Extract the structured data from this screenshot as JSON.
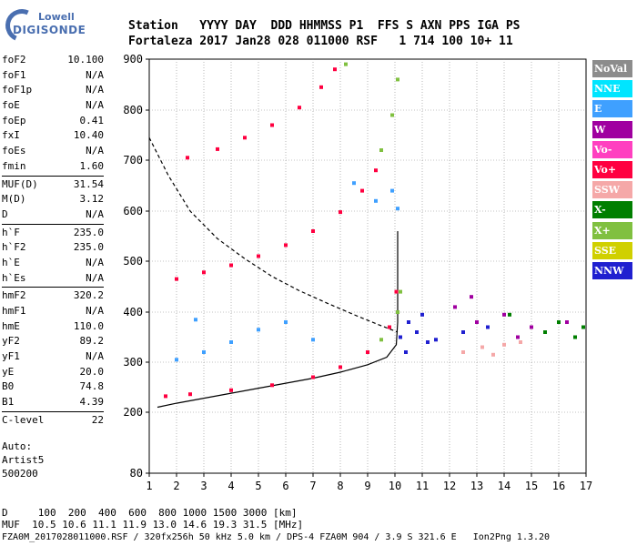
{
  "logo": {
    "line1": "Lowell",
    "line2": "DIGISONDE"
  },
  "header": {
    "row1": "Station   YYYY DAY  DDD HHMMSS P1  FFS S AXN PPS IGA PS",
    "row2": "Fortaleza 2017 Jan28 028 011000 RSF   1 714 100 10+ 11"
  },
  "sidebar": {
    "groups": [
      [
        [
          "foF2",
          "10.100"
        ],
        [
          "foF1",
          "N/A"
        ],
        [
          "foF1p",
          "N/A"
        ],
        [
          "foE",
          "N/A"
        ],
        [
          "foEp",
          "0.41"
        ],
        [
          "fxI",
          "10.40"
        ],
        [
          "foEs",
          "N/A"
        ],
        [
          "fmin",
          "1.60"
        ]
      ],
      [
        [
          "MUF(D)",
          "31.54"
        ],
        [
          "M(D)",
          "3.12"
        ],
        [
          "D",
          "N/A"
        ]
      ],
      [
        [
          "h`F",
          "235.0"
        ],
        [
          "h`F2",
          "235.0"
        ],
        [
          "h`E",
          "N/A"
        ],
        [
          "h`Es",
          "N/A"
        ]
      ],
      [
        [
          "hmF2",
          "320.2"
        ],
        [
          "hmF1",
          "N/A"
        ],
        [
          "hmE",
          "110.0"
        ],
        [
          "yF2",
          "89.2"
        ],
        [
          "yF1",
          "N/A"
        ],
        [
          "yE",
          "20.0"
        ],
        [
          "B0",
          "74.8"
        ],
        [
          "B1",
          "4.39"
        ]
      ],
      [
        [
          "C-level",
          "22"
        ]
      ]
    ],
    "auto": [
      "Auto:",
      "Artist5",
      "500200"
    ]
  },
  "bottom": {
    "line1": "D     100  200  400  600  800 1000 1500 3000 [km]",
    "line2": "MUF  10.5 10.6 11.1 11.9 13.0 14.6 19.3 31.5 [MHz]",
    "line3": "FZA0M_2017028011000.RSF / 320fx256h 50 kHz 5.0 km / DPS-4 FZA0M 904 / 3.9 S 321.6 E   Ion2Png 1.3.20"
  },
  "legend": [
    {
      "label": "NoVal",
      "color": "#8c8c8c"
    },
    {
      "label": "NNE",
      "color": "#00e5ff"
    },
    {
      "label": "E",
      "color": "#3fa0ff"
    },
    {
      "label": "W",
      "color": "#a000a0"
    },
    {
      "label": "Vo-",
      "color": "#ff40c0"
    },
    {
      "label": "Vo+",
      "color": "#ff0040"
    },
    {
      "label": "SSW",
      "color": "#f5a8a8"
    },
    {
      "label": "X-",
      "color": "#007f00"
    },
    {
      "label": "X+",
      "color": "#80c040"
    },
    {
      "label": "SSE",
      "color": "#d0d000"
    },
    {
      "label": "NNW",
      "color": "#2020d0"
    }
  ],
  "chart_data": {
    "type": "scatter",
    "x_ticks": [
      1,
      2,
      3,
      4,
      5,
      6,
      7,
      8,
      9,
      10,
      11,
      12,
      13,
      14,
      15,
      16,
      17
    ],
    "y_ticks": [
      80,
      200,
      300,
      400,
      500,
      600,
      700,
      800,
      900
    ],
    "xlim": [
      1,
      17
    ],
    "ylim": [
      80,
      900
    ],
    "series": [
      {
        "name": "Vo+",
        "color": "#ff0040",
        "points": [
          [
            1.6,
            232
          ],
          [
            2.5,
            236
          ],
          [
            4,
            244
          ],
          [
            5.5,
            254
          ],
          [
            7,
            270
          ],
          [
            8,
            290
          ],
          [
            9,
            320
          ],
          [
            9.8,
            370
          ],
          [
            10.05,
            440
          ],
          [
            2,
            465
          ],
          [
            3,
            478
          ],
          [
            4,
            492
          ],
          [
            5,
            510
          ],
          [
            6,
            532
          ],
          [
            7,
            560
          ],
          [
            8,
            598
          ],
          [
            8.8,
            640
          ],
          [
            9.3,
            680
          ],
          [
            2.4,
            705
          ],
          [
            3.5,
            722
          ],
          [
            4.5,
            745
          ],
          [
            5.5,
            770
          ],
          [
            6.5,
            805
          ],
          [
            7.3,
            845
          ],
          [
            7.8,
            880
          ]
        ]
      },
      {
        "name": "X+",
        "color": "#80c040",
        "points": [
          [
            9.5,
            345
          ],
          [
            10.1,
            400
          ],
          [
            10.2,
            440
          ],
          [
            9.5,
            720
          ],
          [
            9.9,
            790
          ],
          [
            10.1,
            860
          ],
          [
            8.2,
            890
          ]
        ]
      },
      {
        "name": "E",
        "color": "#3fa0ff",
        "points": [
          [
            2,
            305
          ],
          [
            3,
            320
          ],
          [
            4,
            340
          ],
          [
            5,
            365
          ],
          [
            6,
            380
          ],
          [
            7,
            345
          ],
          [
            2.7,
            385
          ],
          [
            9.9,
            640
          ],
          [
            9.3,
            620
          ],
          [
            10.1,
            605
          ],
          [
            8.5,
            655
          ]
        ]
      },
      {
        "name": "NNW",
        "color": "#2020d0",
        "points": [
          [
            10.2,
            350
          ],
          [
            10.5,
            380
          ],
          [
            10.8,
            360
          ],
          [
            11.2,
            340
          ],
          [
            10.4,
            320
          ],
          [
            11,
            395
          ],
          [
            12.5,
            360
          ],
          [
            13.4,
            370
          ],
          [
            11.5,
            345
          ]
        ]
      },
      {
        "name": "W",
        "color": "#a000a0",
        "points": [
          [
            12.2,
            410
          ],
          [
            13,
            380
          ],
          [
            14,
            395
          ],
          [
            15,
            370
          ],
          [
            16.3,
            380
          ],
          [
            12.8,
            430
          ],
          [
            14.5,
            350
          ]
        ]
      },
      {
        "name": "SSW",
        "color": "#f5a8a8",
        "points": [
          [
            12.5,
            320
          ],
          [
            13.2,
            330
          ],
          [
            14,
            335
          ],
          [
            14.6,
            340
          ],
          [
            13.6,
            315
          ]
        ]
      },
      {
        "name": "X-",
        "color": "#007f00",
        "points": [
          [
            15.5,
            360
          ],
          [
            16,
            380
          ],
          [
            16.6,
            350
          ],
          [
            14.2,
            395
          ],
          [
            16.9,
            370
          ]
        ]
      }
    ],
    "curves": [
      {
        "name": "profile",
        "style": "solid",
        "points": [
          [
            1.3,
            210
          ],
          [
            2,
            218
          ],
          [
            3,
            228
          ],
          [
            4,
            238
          ],
          [
            5,
            248
          ],
          [
            6,
            258
          ],
          [
            7,
            268
          ],
          [
            8,
            280
          ],
          [
            9,
            295
          ],
          [
            9.7,
            310
          ],
          [
            10.05,
            335
          ],
          [
            10.1,
            380
          ],
          [
            10.1,
            560
          ]
        ]
      },
      {
        "name": "MUF",
        "style": "dashed",
        "points": [
          [
            1,
            745
          ],
          [
            1.7,
            670
          ],
          [
            2.5,
            600
          ],
          [
            3.5,
            545
          ],
          [
            4.5,
            505
          ],
          [
            5.5,
            470
          ],
          [
            6.5,
            442
          ],
          [
            7.5,
            418
          ],
          [
            8.5,
            395
          ],
          [
            9.4,
            375
          ],
          [
            10.1,
            360
          ]
        ]
      }
    ]
  }
}
